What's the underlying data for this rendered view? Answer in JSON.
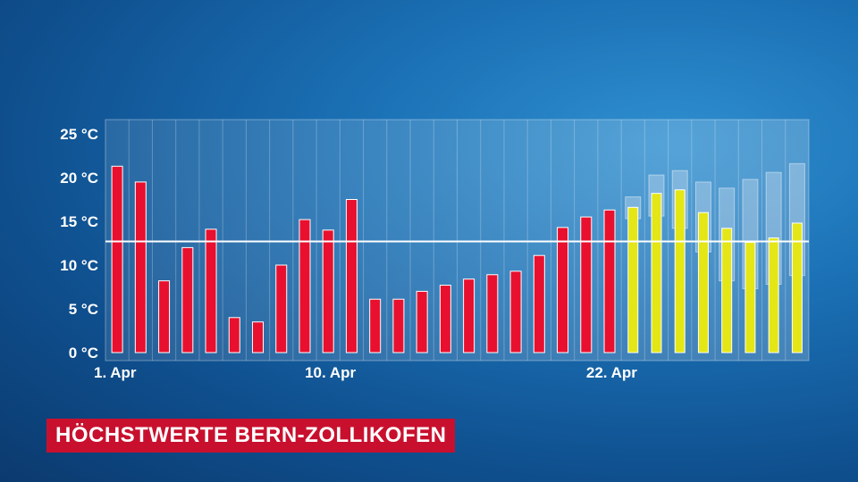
{
  "title": "HÖCHSTWERTE BERN-ZOLLIKOFEN",
  "chart_data": {
    "type": "bar",
    "title": "HÖCHSTWERTE BERN-ZOLLIKOFEN",
    "ylim": [
      0,
      25
    ],
    "y_ticks": [
      "0 °C",
      "5 °C",
      "10 °C",
      "15 °C",
      "20 °C",
      "25 °C"
    ],
    "y_tick_values": [
      0,
      5,
      10,
      15,
      20,
      25
    ],
    "x_tick_labels": [
      {
        "label": "1. Apr",
        "index": 0
      },
      {
        "label": "10. Apr",
        "index": 9
      },
      {
        "label": "22. Apr",
        "index": 21
      }
    ],
    "reference_line": 12.7,
    "grid": true,
    "colors": {
      "observed": "#e8102e",
      "forecast": "#e4e616",
      "range": "#cfe0f0"
    },
    "series": [
      {
        "name": "",
        "values": [
          21.3,
          19.5,
          8.2,
          12.0,
          14.1,
          4.0,
          3.5,
          10.0,
          15.2,
          14.0,
          17.5,
          6.1,
          6.1,
          7.0,
          7.7,
          8.4,
          8.9,
          9.3,
          11.1,
          14.3,
          15.5,
          16.3
        ]
      },
      {
        "name": "",
        "values": [
          16.6,
          18.2,
          18.6,
          16.0,
          14.2,
          12.6,
          13.1,
          14.8
        ]
      }
    ],
    "forecast_range": [
      {
        "low": 15.3,
        "high": 17.8
      },
      {
        "low": 15.6,
        "high": 20.3
      },
      {
        "low": 14.2,
        "high": 20.8
      },
      {
        "low": 11.5,
        "high": 19.5
      },
      {
        "low": 8.2,
        "high": 18.8
      },
      {
        "low": 7.3,
        "high": 19.8
      },
      {
        "low": 7.8,
        "high": 20.6
      },
      {
        "low": 8.8,
        "high": 21.6
      }
    ]
  }
}
